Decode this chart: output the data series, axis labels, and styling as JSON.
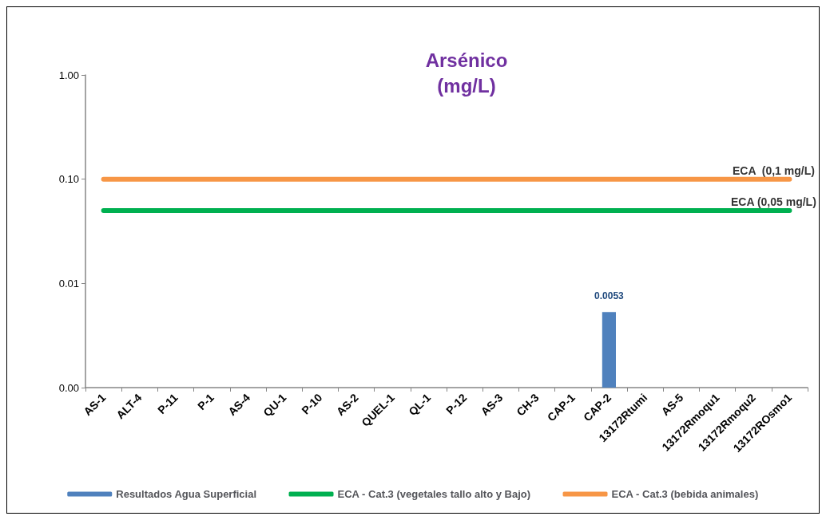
{
  "chart_data": {
    "type": "bar",
    "title": "Arsénico\n(mg/L)",
    "log": "y",
    "grid": false,
    "legend": "bottom",
    "marker": "none",
    "categories": [
      "AS-1",
      "ALT-4",
      "P-11",
      "P-1",
      "AS-4",
      "QU-1",
      "P-10",
      "AS-2",
      "QUEL-1",
      "QL-1",
      "P-12",
      "AS-3",
      "CH-3",
      "CAP-1",
      "CAP-2",
      "13172Rtumi",
      "AS-5",
      "13172Rmoqu1",
      "13172Rmoqu2",
      "13172ROsmo1"
    ],
    "series": [
      {
        "name": "Resultados Agua Superficial",
        "color": "#4f81bd",
        "values": [
          null,
          null,
          null,
          null,
          null,
          null,
          null,
          null,
          null,
          null,
          null,
          null,
          null,
          null,
          0.0053,
          null,
          null,
          null,
          null,
          null
        ],
        "value_labels": [
          null,
          null,
          null,
          null,
          null,
          null,
          null,
          null,
          null,
          null,
          null,
          null,
          null,
          null,
          "0.0053",
          null,
          null,
          null,
          null,
          null
        ]
      },
      {
        "name": "ECA - Cat.3 (vegetales tallo alto y Bajo)",
        "type": "line",
        "color": "#00b050",
        "values": [
          0.05,
          0.05,
          0.05,
          0.05,
          0.05,
          0.05,
          0.05,
          0.05,
          0.05,
          0.05,
          0.05,
          0.05,
          0.05,
          0.05,
          0.05,
          0.05,
          0.05,
          0.05,
          0.05,
          0.05
        ]
      },
      {
        "name": "ECA - Cat.3 (bebida animales)",
        "type": "line",
        "color": "#f79646",
        "values": [
          0.1,
          0.1,
          0.1,
          0.1,
          0.1,
          0.1,
          0.1,
          0.1,
          0.1,
          0.1,
          0.1,
          0.1,
          0.1,
          0.1,
          0.1,
          0.1,
          0.1,
          0.1,
          0.1,
          0.1
        ]
      }
    ],
    "ylim": [
      0.001,
      1
    ],
    "yticks": [
      {
        "value": 0.001,
        "label": "0.00"
      },
      0.01,
      {
        "value": 0.1,
        "label": "0.10"
      },
      {
        "value": 1,
        "label": "1.00"
      }
    ],
    "annotations": [
      {
        "text": "ECA  (0,1 mg/L)",
        "x": "13172ROsmo1",
        "y": 0.1
      },
      {
        "text": "ECA (0,05 mg/L)",
        "x": "13172ROsmo1",
        "y": 0.05
      }
    ]
  }
}
